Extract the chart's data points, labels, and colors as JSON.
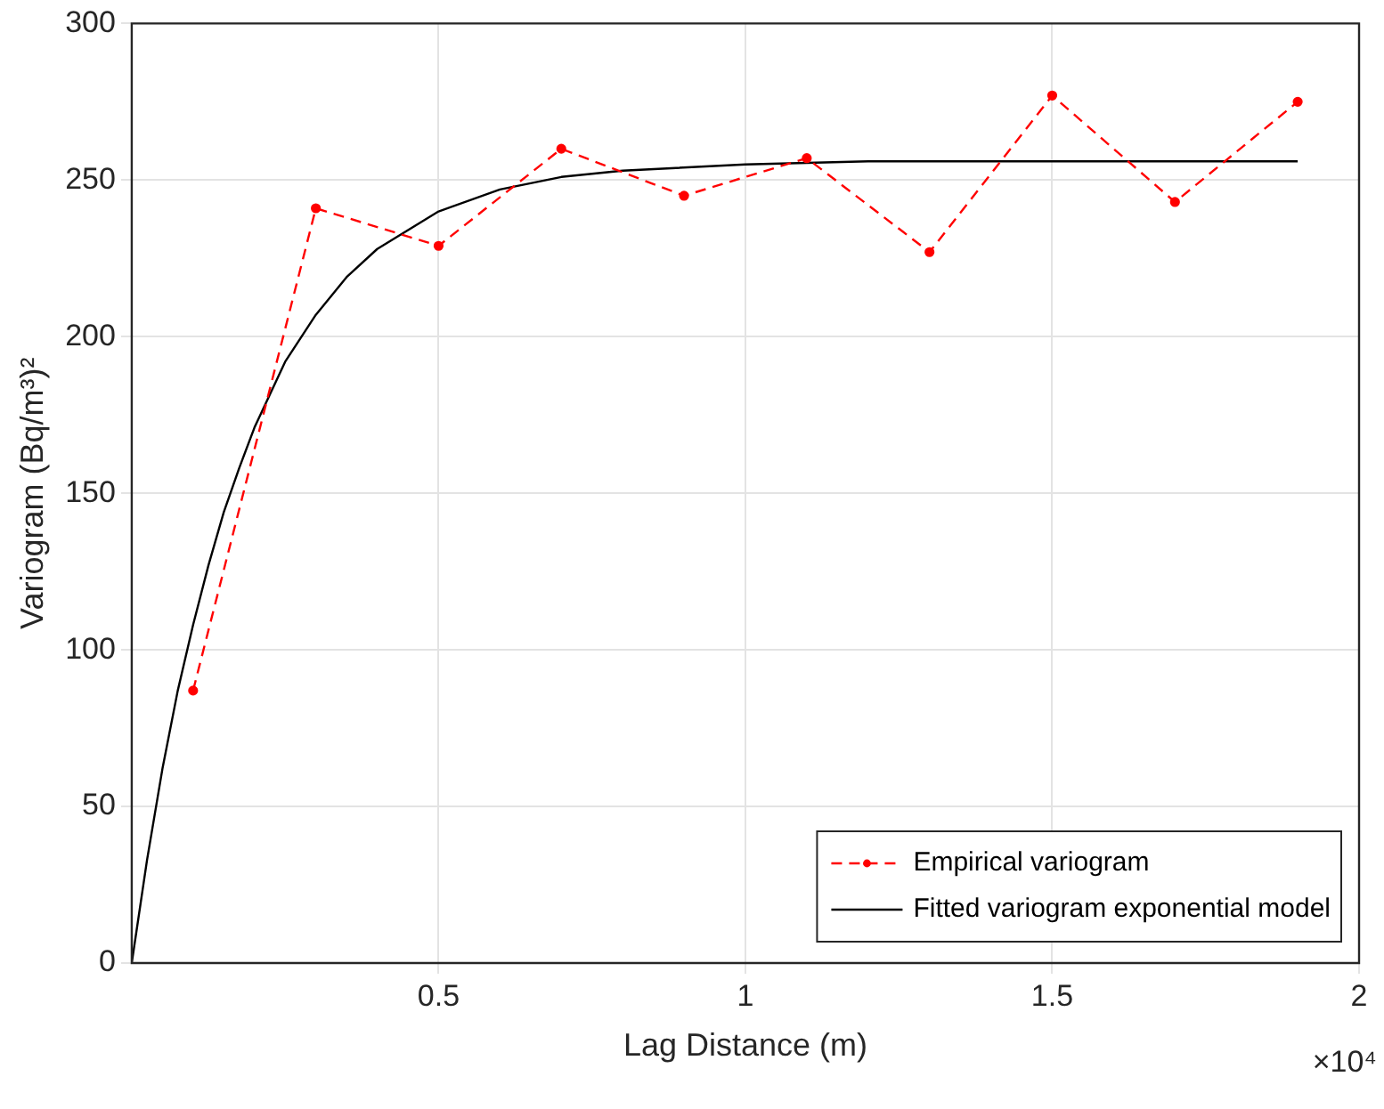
{
  "chart_data": {
    "type": "line",
    "xlabel": "Lag Distance (m)",
    "ylabel": "Variogram (Bq/m³)²",
    "xlim": [
      0,
      2
    ],
    "xticks": [
      0.5,
      1,
      1.5,
      2
    ],
    "ylim": [
      0,
      300
    ],
    "yticks": [
      0,
      50,
      100,
      150,
      200,
      250,
      300
    ],
    "grid": true,
    "legend": "bottom right",
    "annotations": [
      "×10⁴"
    ],
    "series": [
      {
        "name": "Empirical variogram",
        "color": "#ff0000",
        "marker": "circle",
        "line_style": "dashed",
        "x": [
          0.1,
          0.3,
          0.5,
          0.7,
          0.9,
          1.1,
          1.3,
          1.5,
          1.7,
          1.9
        ],
        "values": [
          87,
          241,
          229,
          260,
          245,
          257,
          227,
          277,
          243,
          275
        ]
      },
      {
        "name": "Fitted variogram exponential model",
        "color": "#000000",
        "marker": "none",
        "line_style": "solid",
        "x": [
          0,
          0.025,
          0.05,
          0.075,
          0.1,
          0.125,
          0.15,
          0.175,
          0.2,
          0.25,
          0.3,
          0.35,
          0.4,
          0.5,
          0.6,
          0.7,
          0.8,
          1.0,
          1.2,
          1.5,
          1.9
        ],
        "values": [
          0,
          33,
          62,
          87,
          108,
          127,
          144,
          158,
          171,
          192,
          207,
          219,
          228,
          240,
          247,
          251,
          253,
          255,
          256,
          256,
          256
        ]
      }
    ]
  }
}
